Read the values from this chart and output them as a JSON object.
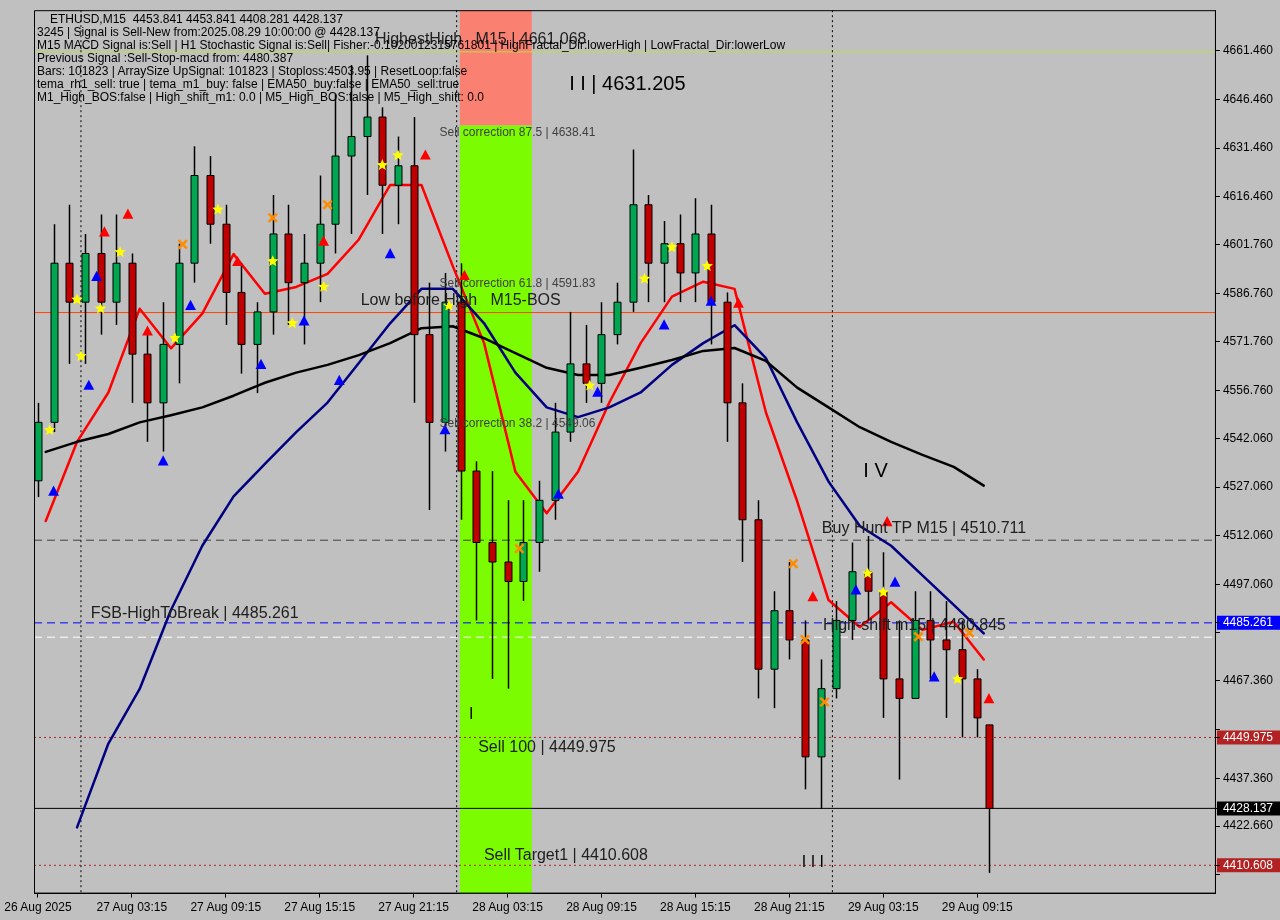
{
  "chart_data": {
    "type": "candlestick",
    "title": "ETHUSD,M15  4453.841 4453.841 4408.281 4428.137",
    "x": [
      "2025-08-26T21:15",
      "2025-08-26T22:15",
      "2025-08-26T23:15",
      "2025-08-27T00:15",
      "2025-08-27T01:15",
      "2025-08-27T02:15",
      "2025-08-27T03:15",
      "2025-08-27T04:15",
      "2025-08-27T05:15",
      "2025-08-27T06:15",
      "2025-08-27T07:15",
      "2025-08-27T08:15",
      "2025-08-27T09:15",
      "2025-08-27T10:15",
      "2025-08-27T11:15",
      "2025-08-27T12:15",
      "2025-08-27T13:15",
      "2025-08-27T14:15",
      "2025-08-27T15:15",
      "2025-08-27T16:15",
      "2025-08-27T17:15",
      "2025-08-27T18:15",
      "2025-08-27T19:15",
      "2025-08-27T20:15",
      "2025-08-27T21:15",
      "2025-08-27T22:15",
      "2025-08-27T23:15",
      "2025-08-28T00:15",
      "2025-08-28T01:15",
      "2025-08-28T02:15",
      "2025-08-28T03:15",
      "2025-08-28T04:15",
      "2025-08-28T05:15",
      "2025-08-28T06:15",
      "2025-08-28T07:15",
      "2025-08-28T08:15",
      "2025-08-28T09:15",
      "2025-08-28T10:15",
      "2025-08-28T11:15",
      "2025-08-28T12:15",
      "2025-08-28T13:15",
      "2025-08-28T14:15",
      "2025-08-28T15:15",
      "2025-08-28T16:15",
      "2025-08-28T17:15",
      "2025-08-28T18:15",
      "2025-08-28T19:15",
      "2025-08-28T20:15",
      "2025-08-28T21:15",
      "2025-08-28T22:15",
      "2025-08-28T23:15",
      "2025-08-29T00:15",
      "2025-08-29T01:15",
      "2025-08-29T02:15",
      "2025-08-29T03:15",
      "2025-08-29T04:15",
      "2025-08-29T05:15",
      "2025-08-29T06:15",
      "2025-08-29T07:15",
      "2025-08-29T08:15",
      "2025-08-29T09:15",
      "2025-08-29T10:00"
    ],
    "ohlc": [
      [
        4529,
        4553,
        4524,
        4547
      ],
      [
        4547,
        4608,
        4544,
        4596
      ],
      [
        4596,
        4614,
        4565,
        4584
      ],
      [
        4584,
        4605,
        4565,
        4599
      ],
      [
        4599,
        4611,
        4574,
        4584
      ],
      [
        4584,
        4611,
        4577,
        4596
      ],
      [
        4596,
        4599,
        4553,
        4568
      ],
      [
        4568,
        4574,
        4541,
        4553
      ],
      [
        4553,
        4584,
        4538,
        4571
      ],
      [
        4571,
        4602,
        4559,
        4596
      ],
      [
        4596,
        4632,
        4590,
        4623
      ],
      [
        4623,
        4629,
        4602,
        4608
      ],
      [
        4608,
        4614,
        4577,
        4587
      ],
      [
        4587,
        4596,
        4562,
        4571
      ],
      [
        4571,
        4584,
        4556,
        4581
      ],
      [
        4581,
        4617,
        4574,
        4605
      ],
      [
        4605,
        4614,
        4577,
        4590
      ],
      [
        4590,
        4605,
        4571,
        4596
      ],
      [
        4596,
        4623,
        4584,
        4608
      ],
      [
        4608,
        4648,
        4599,
        4629
      ],
      [
        4629,
        4657,
        4605,
        4635
      ],
      [
        4635,
        4660,
        4617,
        4641
      ],
      [
        4641,
        4644,
        4605,
        4620
      ],
      [
        4620,
        4635,
        4608,
        4626
      ],
      [
        4626,
        4641,
        4553,
        4574
      ],
      [
        4574,
        4590,
        4520,
        4547
      ],
      [
        4547,
        4593,
        4538,
        4584
      ],
      [
        4584,
        4596,
        4517,
        4532
      ],
      [
        4532,
        4535,
        4486,
        4510
      ],
      [
        4510,
        4532,
        4468,
        4504
      ],
      [
        4504,
        4523,
        4465,
        4498
      ],
      [
        4498,
        4523,
        4492,
        4510
      ],
      [
        4510,
        4529,
        4501,
        4523
      ],
      [
        4523,
        4553,
        4517,
        4544
      ],
      [
        4544,
        4581,
        4541,
        4565
      ],
      [
        4565,
        4577,
        4553,
        4559
      ],
      [
        4559,
        4584,
        4553,
        4574
      ],
      [
        4574,
        4590,
        4571,
        4584
      ],
      [
        4584,
        4631,
        4581,
        4614
      ],
      [
        4614,
        4617,
        4584,
        4596
      ],
      [
        4596,
        4609,
        4584,
        4602
      ],
      [
        4602,
        4611,
        4584,
        4593
      ],
      [
        4593,
        4616,
        4584,
        4605
      ],
      [
        4605,
        4614,
        4571,
        4584
      ],
      [
        4584,
        4587,
        4541,
        4553
      ],
      [
        4553,
        4559,
        4504,
        4517
      ],
      [
        4517,
        4523,
        4462,
        4471
      ],
      [
        4471,
        4495,
        4459,
        4489
      ],
      [
        4489,
        4504,
        4474,
        4480
      ],
      [
        4480,
        4486,
        4434,
        4444
      ],
      [
        4444,
        4474,
        4428,
        4465
      ],
      [
        4465,
        4492,
        4462,
        4486
      ],
      [
        4486,
        4510,
        4480,
        4501
      ],
      [
        4501,
        4512,
        4486,
        4495
      ],
      [
        4495,
        4507,
        4456,
        4468
      ],
      [
        4468,
        4486,
        4437,
        4462
      ],
      [
        4462,
        4495,
        4462,
        4486
      ],
      [
        4486,
        4495,
        4468,
        4480
      ],
      [
        4480,
        4492,
        4456,
        4477
      ],
      [
        4477,
        4486,
        4450,
        4468
      ],
      [
        4468,
        4471,
        4450,
        4456
      ],
      [
        4453.841,
        4453.841,
        4408.281,
        4428.137
      ]
    ],
    "colors": [
      "#00a650",
      "#00a650",
      "#c00000",
      "#00a650",
      "#c00000",
      "#00a650",
      "#c00000",
      "#c00000",
      "#00a650",
      "#00a650",
      "#00a650",
      "#c00000",
      "#c00000",
      "#c00000",
      "#00a650",
      "#00a650",
      "#c00000",
      "#00a650",
      "#00a650",
      "#00a650",
      "#00a650",
      "#00a650",
      "#c00000",
      "#00a650",
      "#c00000",
      "#c00000",
      "#00a650",
      "#c00000",
      "#c00000",
      "#c00000",
      "#c00000",
      "#00a650",
      "#00a650",
      "#00a650",
      "#00a650",
      "#c00000",
      "#00a650",
      "#00a650",
      "#00a650",
      "#c00000",
      "#00a650",
      "#c00000",
      "#00a650",
      "#c00000",
      "#c00000",
      "#c00000",
      "#c00000",
      "#00a650",
      "#c00000",
      "#c00000",
      "#00a650",
      "#00a650",
      "#00a650",
      "#c00000",
      "#c00000",
      "#c00000",
      "#00a650",
      "#c00000",
      "#c00000",
      "#c00000",
      "#c00000",
      "#c00000"
    ],
    "series": [
      {
        "type": "bar",
        "color": "#fa8072",
        "x": [
          "2025-08-28T02:30"
        ],
        "base": [
          4638.41
        ],
        "values": [
          35.5
        ]
      },
      {
        "type": "bar",
        "color": "#7cfc00",
        "x": [
          "2025-08-28T02:30"
        ],
        "base": [
          4401.9
        ],
        "values": [
          236.5
        ]
      },
      {
        "type": "line",
        "color": "#000000",
        "marker": "none",
        "x": [
          "2025-08-26T21:45",
          "2025-08-26T23:45",
          "2025-08-27T01:45",
          "2025-08-27T03:45",
          "2025-08-27T05:45",
          "2025-08-27T07:45",
          "2025-08-27T09:45",
          "2025-08-27T11:45",
          "2025-08-27T13:45",
          "2025-08-27T15:45",
          "2025-08-27T17:45",
          "2025-08-27T19:45",
          "2025-08-27T21:45",
          "2025-08-27T23:45",
          "2025-08-28T01:45",
          "2025-08-28T03:45",
          "2025-08-28T05:45",
          "2025-08-28T07:45",
          "2025-08-28T09:45",
          "2025-08-28T11:45",
          "2025-08-28T13:45",
          "2025-08-28T15:45",
          "2025-08-28T17:45",
          "2025-08-28T19:45",
          "2025-08-28T21:45",
          "2025-08-28T23:45",
          "2025-08-29T01:45",
          "2025-08-29T03:45",
          "2025-08-29T05:45",
          "2025-08-29T07:45",
          "2025-08-29T09:40"
        ],
        "values": [
          4537.9,
          4541.0,
          4543.4,
          4547.0,
          4549.2,
          4551.6,
          4555.2,
          4559.2,
          4562.3,
          4564.7,
          4567.7,
          4571.4,
          4576.0,
          4576.6,
          4572.9,
          4568.3,
          4563.8,
          4561.6,
          4561.6,
          4563.8,
          4566.2,
          4569.0,
          4569.9,
          4565.9,
          4557.7,
          4551.6,
          4545.5,
          4541.0,
          4537.0,
          4533.3,
          4527.5
        ]
      },
      {
        "type": "line",
        "color": "#000080",
        "marker": "none",
        "x": [
          "2025-08-26T23:45",
          "2025-08-27T01:45",
          "2025-08-27T03:45",
          "2025-08-27T05:45",
          "2025-08-27T07:45",
          "2025-08-27T09:45",
          "2025-08-27T11:45",
          "2025-08-27T13:45",
          "2025-08-27T15:45",
          "2025-08-27T17:45",
          "2025-08-27T19:45",
          "2025-08-27T21:45",
          "2025-08-27T23:45",
          "2025-08-28T01:45",
          "2025-08-28T03:45",
          "2025-08-28T05:45",
          "2025-08-28T07:45",
          "2025-08-28T09:45",
          "2025-08-28T11:45",
          "2025-08-28T13:45",
          "2025-08-28T15:45",
          "2025-08-28T17:45",
          "2025-08-28T19:45",
          "2025-08-28T21:45",
          "2025-08-28T23:45",
          "2025-08-29T01:45",
          "2025-08-29T03:45",
          "2025-08-29T05:45",
          "2025-08-29T07:45",
          "2025-08-29T09:40"
        ],
        "values": [
          4422.3,
          4448.1,
          4464.9,
          4489.2,
          4509.0,
          4524.2,
          4534.2,
          4544.0,
          4553.1,
          4565.3,
          4577.5,
          4588.1,
          4588.1,
          4577.5,
          4562.3,
          4551.6,
          4548.6,
          4551.6,
          4556.2,
          4564.7,
          4571.4,
          4576.9,
          4566.8,
          4547.0,
          4528.8,
          4515.1,
          4509.0,
          4499.9,
          4490.8,
          4482.0
        ]
      },
      {
        "type": "line",
        "color": "#ff0000",
        "marker": "none",
        "x": [
          "2025-08-26T21:45",
          "2025-08-26T23:45",
          "2025-08-27T01:45",
          "2025-08-27T03:45",
          "2025-08-27T05:45",
          "2025-08-27T07:45",
          "2025-08-27T09:45",
          "2025-08-27T11:45",
          "2025-08-27T13:45",
          "2025-08-27T15:45",
          "2025-08-27T17:45",
          "2025-08-27T19:45",
          "2025-08-27T21:45",
          "2025-08-27T23:45",
          "2025-08-28T01:45",
          "2025-08-28T03:45",
          "2025-08-28T05:45",
          "2025-08-28T07:45",
          "2025-08-28T09:45",
          "2025-08-28T11:45",
          "2025-08-28T13:45",
          "2025-08-28T15:45",
          "2025-08-28T17:45",
          "2025-08-28T19:45",
          "2025-08-28T21:45",
          "2025-08-28T23:45",
          "2025-08-29T01:45",
          "2025-08-29T03:45",
          "2025-08-29T05:45",
          "2025-08-29T07:45",
          "2025-08-29T09:40"
        ],
        "values": [
          4516.6,
          4541.0,
          4556.2,
          4582.0,
          4569.8,
          4580.5,
          4598.8,
          4586.6,
          4588.7,
          4592.7,
          4603.3,
          4620.1,
          4620.1,
          4595.1,
          4571.4,
          4531.8,
          4519.0,
          4531.8,
          4553.1,
          4571.4,
          4585.7,
          4590.3,
          4588.1,
          4550.1,
          4522.7,
          4492.3,
          4484.0,
          4491.6,
          4483.1,
          4485.6,
          4474.0
        ]
      },
      {
        "type": "scatter",
        "color": "#ffff00",
        "marker": "star",
        "x": [
          "2025-08-26T22:00",
          "2025-08-26T23:45",
          "2025-08-27T00:00",
          "2025-08-27T01:15",
          "2025-08-27T02:30",
          "2025-08-27T06:00",
          "2025-08-27T08:45",
          "2025-08-27T12:15",
          "2025-08-27T13:30",
          "2025-08-27T15:30",
          "2025-08-27T19:15",
          "2025-08-27T20:15",
          "2025-08-27T23:30",
          "2025-08-28T08:30",
          "2025-08-28T12:00",
          "2025-08-28T13:45",
          "2025-08-28T16:00",
          "2025-08-29T02:15",
          "2025-08-29T03:15",
          "2025-08-29T08:00"
        ],
        "values": [
          4544.6,
          4584.8,
          4567.4,
          4582.0,
          4599.4,
          4572.9,
          4612.5,
          4596.6,
          4577.5,
          4588.7,
          4626.2,
          4629.2,
          4582.9,
          4558.3,
          4591.2,
          4600.9,
          4595.1,
          4500.5,
          4494.7,
          4467.9
        ]
      },
      {
        "type": "scatter",
        "color": "#0000ff",
        "marker": "triangle",
        "x": [
          "2025-08-26T22:15",
          "2025-08-27T00:30",
          "2025-08-27T01:00",
          "2025-08-27T05:15",
          "2025-08-27T07:00",
          "2025-08-27T11:30",
          "2025-08-27T14:15",
          "2025-08-27T16:30",
          "2025-08-27T19:45",
          "2025-08-27T23:15",
          "2025-08-28T06:30",
          "2025-08-28T09:00",
          "2025-08-28T13:15",
          "2025-08-28T16:15",
          "2025-08-29T01:30",
          "2025-08-29T04:00",
          "2025-08-29T06:30"
        ],
        "values": [
          4525.7,
          4558.3,
          4591.8,
          4535.0,
          4582.9,
          4564.7,
          4578.1,
          4559.8,
          4598.8,
          4544.6,
          4524.8,
          4556.2,
          4576.9,
          4584.2,
          4495.3,
          4497.7,
          4468.5
        ]
      },
      {
        "type": "scatter",
        "color": "#ff0000",
        "marker": "triangle",
        "x": [
          "2025-08-27T01:30",
          "2025-08-27T03:00",
          "2025-08-27T04:15",
          "2025-08-27T10:00",
          "2025-08-27T15:30",
          "2025-08-27T22:00",
          "2025-08-28T00:30",
          "2025-08-28T18:00",
          "2025-08-28T22:45",
          "2025-08-29T03:30",
          "2025-08-29T10:00"
        ],
        "values": [
          4605.5,
          4611.0,
          4575.0,
          4596.4,
          4602.7,
          4629.2,
          4592.1,
          4583.6,
          4493.2,
          4516.3,
          4461.8
        ]
      },
      {
        "type": "scatter",
        "color": "#ff8c00",
        "marker": "cross",
        "x": [
          "2025-08-27T06:30",
          "2025-08-27T12:15",
          "2025-08-27T15:45",
          "2025-08-28T04:00",
          "2025-08-28T21:30",
          "2025-08-28T22:15",
          "2025-08-28T23:30",
          "2025-08-29T05:30",
          "2025-08-29T08:45"
        ],
        "values": [
          4601.8,
          4610.0,
          4614.0,
          4508.1,
          4503.5,
          4480.1,
          4460.9,
          4481.0,
          4482.2
        ]
      }
    ],
    "ref_lines": [
      {
        "axis": "y",
        "value": 4661.068,
        "label": "HighestHigh   M15 | 4661.068",
        "color": "#b8e040",
        "line_style": "solid"
      },
      {
        "axis": "y",
        "value": 4580.8,
        "label": "Low before High   M15-BOS",
        "color": "#ff4500",
        "line_style": "solid"
      },
      {
        "axis": "y",
        "value": 4510.711,
        "label": "Buy Hunt TP M15 | 4510.711",
        "color": "#404040",
        "line_style": "dashed"
      },
      {
        "axis": "y",
        "value": 4480.845,
        "label": "High-shift m15 | 4480.845",
        "color": "#ffffff",
        "line_style": "dashed"
      },
      {
        "axis": "y",
        "value": 4485.261,
        "label": "FSB-HighToBreak | 4485.261",
        "color": "#0000ff",
        "line_style": "dashed"
      },
      {
        "axis": "y",
        "value": 4449.975,
        "label": "Sell 100 | 4449.975",
        "color": "#b22222",
        "line_style": "dotted"
      },
      {
        "axis": "y",
        "value": 4428.137,
        "color": "#000000",
        "line_style": "solid"
      },
      {
        "axis": "y",
        "value": 4410.608,
        "label": "Sell Target1 | 4410.608",
        "color": "#b22222",
        "line_style": "dotted"
      },
      {
        "axis": "x",
        "value": "2025-08-27T00:00",
        "color": "#000000",
        "line_style": "dotted"
      },
      {
        "axis": "x",
        "value": "2025-08-28T00:00",
        "color": "#000000",
        "line_style": "dotted"
      },
      {
        "axis": "x",
        "value": "2025-08-29T00:00",
        "color": "#000000",
        "line_style": "dotted"
      }
    ],
    "annotations": [
      "3245 | Signal is Sell-New from:2025.08.29 10:00:00 @ 4428.137",
      "M15 MACD Signal is:Sell | H1 Stochastic Signal is:Sell| Fisher:-0.1020012315761801 | HighFractal_Dir:lowerHigh | LowFractal_Dir:lowerLow",
      "Previous Signal :Sell-Stop-macd from: 4480.387",
      "Bars: 101823 | ArraySize UpSignal: 101823 | Stoploss:4503.95 | ResetLoop:false",
      "tema_rh1_sell: true | tema_m1_buy: false | EMA50_buy:false | EMA50_sell:true",
      "M1_High_BOS:false | High_shift_m1: 0.0 | M5_High_BOS:false | M5_High_shift: 0.0",
      "I I | 4631.205",
      "Sell correction 87.5 | 4638.41",
      "Sell correction 61.8 | 4591.83",
      "Sell correction 38.2 | 4549.06",
      "I V",
      "I",
      "I I I"
    ],
    "xlim": [
      "2025-08-26T21:00",
      "2025-08-30T00:30"
    ],
    "xticks": [
      {
        "value": "2025-08-26T21:15",
        "label": "26 Aug 2025"
      },
      {
        "value": "2025-08-27T03:15",
        "label": "27 Aug 03:15"
      },
      {
        "value": "2025-08-27T09:15",
        "label": "27 Aug 09:15"
      },
      {
        "value": "2025-08-27T15:15",
        "label": "27 Aug 15:15"
      },
      {
        "value": "2025-08-27T21:15",
        "label": "27 Aug 21:15"
      },
      {
        "value": "2025-08-28T03:15",
        "label": "28 Aug 03:15"
      },
      {
        "value": "2025-08-28T09:15",
        "label": "28 Aug 09:15"
      },
      {
        "value": "2025-08-28T15:15",
        "label": "28 Aug 15:15"
      },
      {
        "value": "2025-08-28T21:15",
        "label": "28 Aug 21:15"
      },
      {
        "value": "2025-08-29T03:15",
        "label": "29 Aug 03:15"
      },
      {
        "value": "2025-08-29T09:15",
        "label": "29 Aug 09:15"
      }
    ],
    "ylim": [
      4401.9,
      4673.9
    ],
    "yticks": [
      {
        "value": 4407.66,
        "label": null
      },
      {
        "value": 4410.608,
        "label": "4410.608"
      },
      {
        "value": 4422.66,
        "label": "4422.660"
      },
      {
        "value": 4428.137,
        "label": "4428.137"
      },
      {
        "value": 4437.36,
        "label": "4437.360"
      },
      {
        "value": 4449.975,
        "label": "4449.975"
      },
      {
        "value": 4452.36,
        "label": null
      },
      {
        "value": 4467.36,
        "label": "4467.360"
      },
      {
        "value": 4482.36,
        "label": null
      },
      {
        "value": 4485.261,
        "label": "4485.261"
      },
      {
        "value": 4497.06,
        "label": "4497.060"
      },
      {
        "value": 4512.06,
        "label": "4512.060"
      },
      {
        "value": 4527.06,
        "label": "4527.060"
      },
      {
        "value": 4542.06,
        "label": "4542.060"
      },
      {
        "value": 4556.76,
        "label": "4556.760"
      },
      {
        "value": 4571.76,
        "label": "4571.760"
      },
      {
        "value": 4586.76,
        "label": "4586.760"
      },
      {
        "value": 4601.76,
        "label": "4601.760"
      },
      {
        "value": 4616.46,
        "label": "4616.460"
      },
      {
        "value": 4631.46,
        "label": "4631.460"
      },
      {
        "value": 4646.46,
        "label": "4646.460"
      },
      {
        "value": 4661.46,
        "label": "4661.460"
      }
    ],
    "grid": false,
    "legend": false
  }
}
